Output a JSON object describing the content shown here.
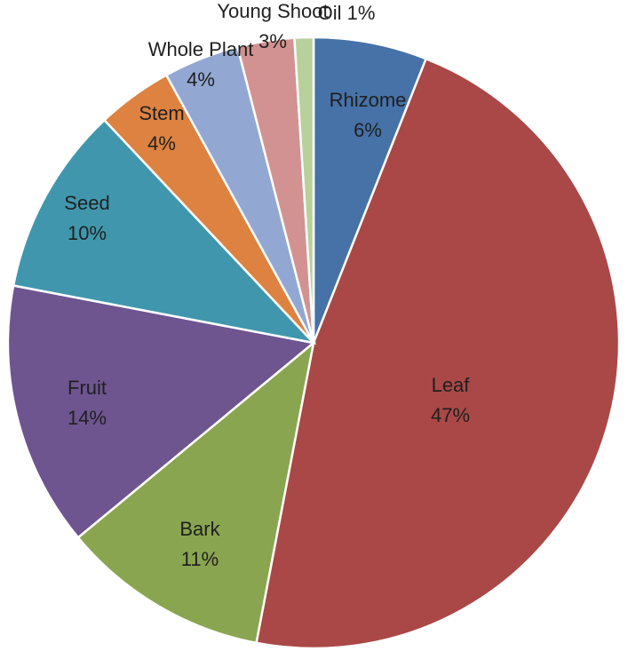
{
  "chart_data": {
    "type": "pie",
    "title": "",
    "start_angle_deg": 0,
    "direction": "clockwise",
    "slices": [
      {
        "label": "Rhizome",
        "value": 6,
        "value_label": "6%",
        "color": "#4672a8",
        "label_layout": "inside-two-line"
      },
      {
        "label": "Leaf",
        "value": 47,
        "value_label": "47%",
        "color": "#a94846",
        "label_layout": "inside-two-line"
      },
      {
        "label": "Bark",
        "value": 11,
        "value_label": "11%",
        "color": "#8aa54f",
        "label_layout": "inside-two-line"
      },
      {
        "label": "Fruit",
        "value": 14,
        "value_label": "14%",
        "color": "#6e5590",
        "label_layout": "inside-two-line"
      },
      {
        "label": "Seed",
        "value": 10,
        "value_label": "10%",
        "color": "#4097ad",
        "label_layout": "inside-two-line"
      },
      {
        "label": "Stem",
        "value": 4,
        "value_label": "4%",
        "color": "#dd8240",
        "label_layout": "inside-two-line"
      },
      {
        "label": "Whole Plant",
        "value": 4,
        "value_label": "4%",
        "color": "#92a8d3",
        "label_layout": "outside-two-line"
      },
      {
        "label": "Young Shoot",
        "value": 3,
        "value_label": "3%",
        "color": "#d29291",
        "label_layout": "outside-two-line"
      },
      {
        "label": "Oil",
        "value": 1,
        "value_label": "1%",
        "color": "#b8d09a",
        "label_layout": "outside-one-line"
      }
    ]
  }
}
